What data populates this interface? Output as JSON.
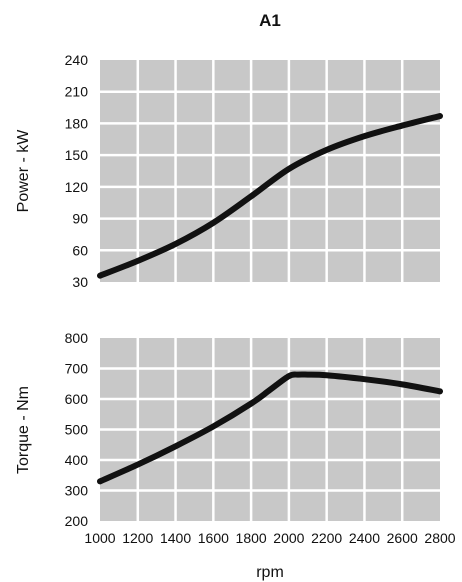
{
  "chart_data": {
    "title": "A1",
    "xlabel": "rpm",
    "x_ticks": [
      1000,
      1200,
      1400,
      1600,
      1800,
      2000,
      2200,
      2400,
      2600,
      2800
    ],
    "xlim": [
      1000,
      2800
    ],
    "panels": [
      {
        "type": "line",
        "ylabel": "Power - kW",
        "ylim": [
          30,
          240
        ],
        "y_ticks": [
          30,
          60,
          90,
          120,
          150,
          180,
          210,
          240
        ],
        "grid": true,
        "series": [
          {
            "x": [
              1000,
              1200,
              1400,
              1600,
              1800,
              2000,
              2200,
              2400,
              2600,
              2800
            ],
            "y": [
              36,
              50,
              66,
              86,
              111,
              137,
              155,
              168,
              178,
              187
            ]
          }
        ]
      },
      {
        "type": "line",
        "ylabel": "Torque - Nm",
        "ylim": [
          200,
          800
        ],
        "y_ticks": [
          200,
          300,
          400,
          500,
          600,
          700,
          800
        ],
        "grid": true,
        "series": [
          {
            "x": [
              1000,
              1200,
              1400,
              1600,
              1800,
              1900,
              2000,
              2050,
              2100,
              2200,
              2400,
              2600,
              2800
            ],
            "y": [
              330,
              385,
              445,
              510,
              585,
              630,
              675,
              680,
              680,
              678,
              665,
              648,
              625
            ]
          }
        ]
      }
    ]
  }
}
